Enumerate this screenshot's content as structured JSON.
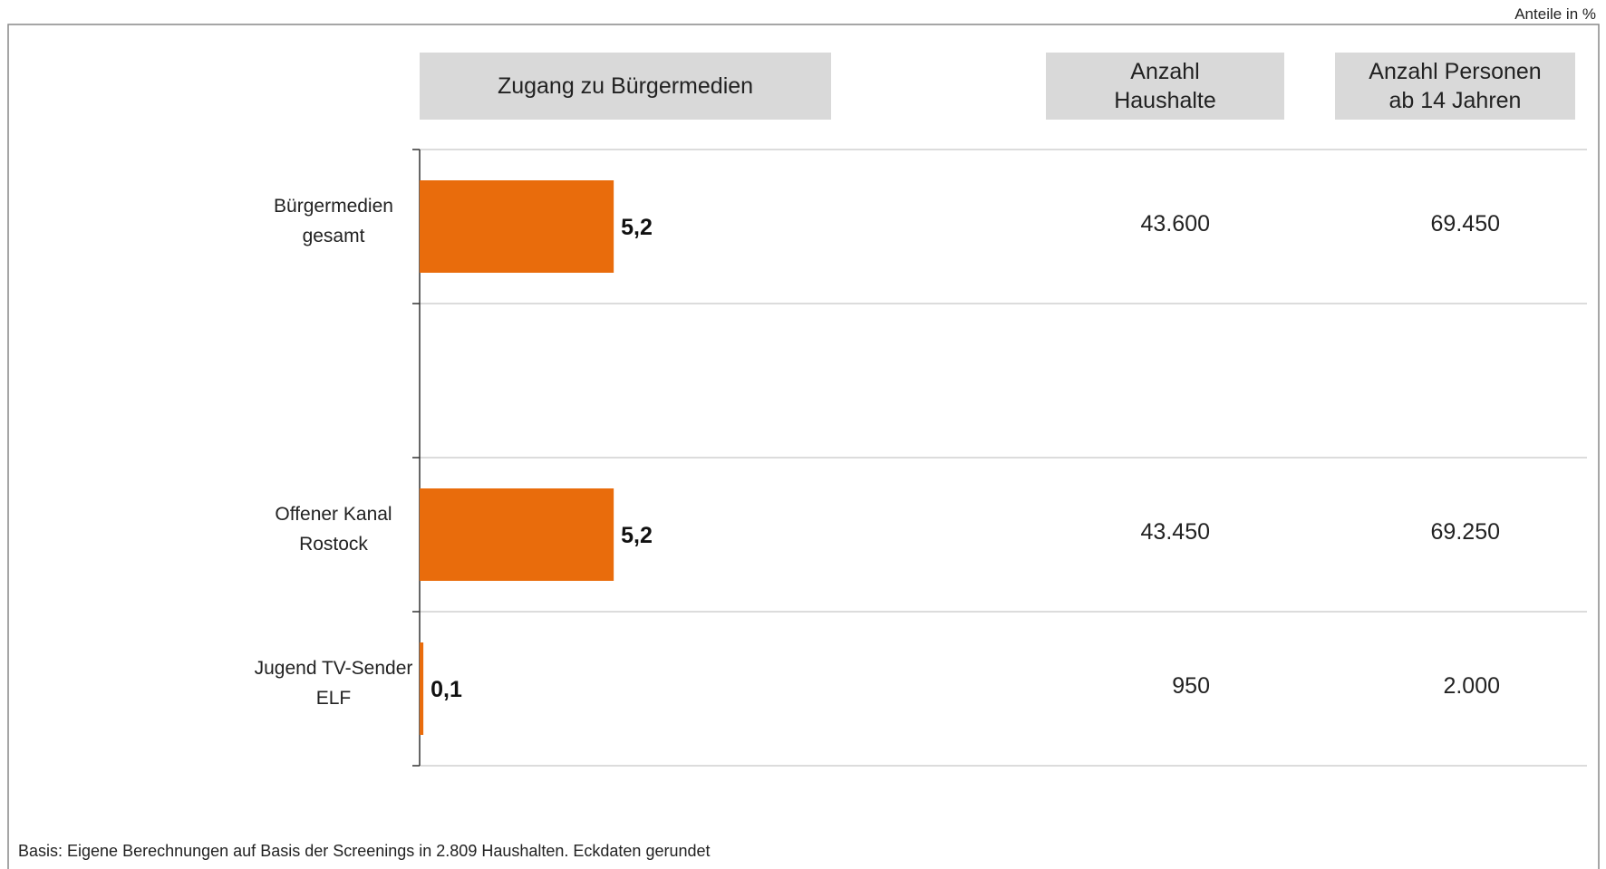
{
  "chart_data": {
    "type": "bar",
    "orientation": "horizontal",
    "title": "Zugang zu Bürgermedien",
    "unit_note": "Anteile in %",
    "footnote": "Basis: Eigene Berechnungen auf Basis der Screenings in 2.809 Haushalten. Eckdaten gerundet",
    "categories": [
      "Bürgermedien gesamt",
      null,
      "Offener Kanal Rostock",
      "Jugend TV-Sender ELF"
    ],
    "values": [
      5.2,
      null,
      5.2,
      0.1
    ],
    "value_labels": [
      "5,2",
      null,
      "5,2",
      "0,1"
    ],
    "color": "#e96c0c",
    "xlim": [
      0,
      11
    ],
    "columns": [
      {
        "header": "Anzahl Haushalte",
        "values": [
          43600,
          null,
          43450,
          950
        ],
        "value_labels": [
          "43.600",
          null,
          "43.450",
          "950"
        ]
      },
      {
        "header": "Anzahl Personen ab 14 Jahren",
        "values": [
          69450,
          null,
          69250,
          2000
        ],
        "value_labels": [
          "69.450",
          null,
          "69.250",
          "2.000"
        ]
      }
    ]
  }
}
